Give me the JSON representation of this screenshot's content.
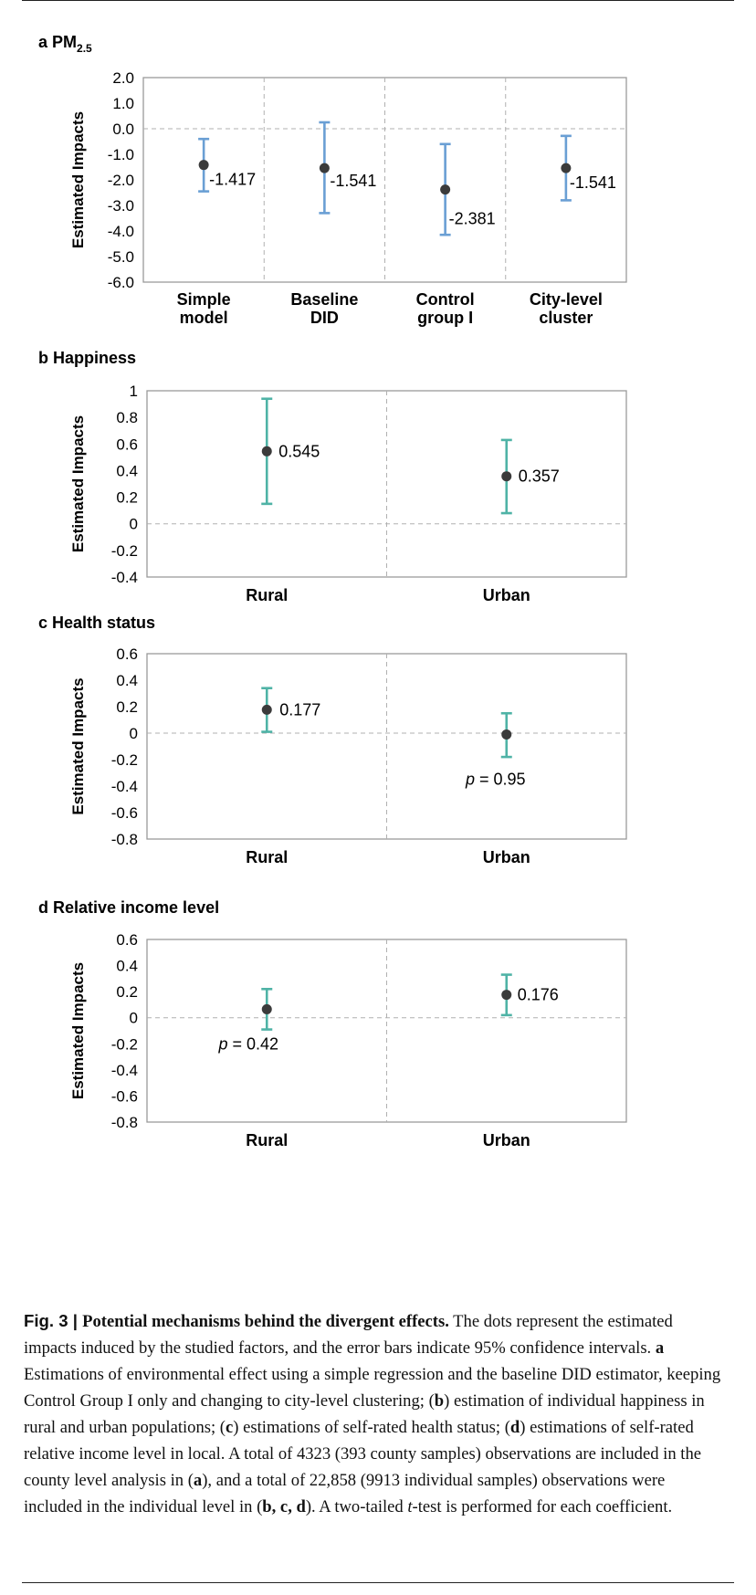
{
  "chart_data": [
    {
      "type": "scatter",
      "panel": "a",
      "title": "PM",
      "title_sub": "2.5",
      "ylabel": "Estimated Impacts",
      "ylim": [
        -6.0,
        2.0
      ],
      "yticks": [
        2.0,
        1.0,
        0.0,
        -1.0,
        -2.0,
        -3.0,
        -4.0,
        -5.0,
        -6.0
      ],
      "ytick_labels": [
        "2.0",
        "1.0",
        "0.0",
        "-1.0",
        "-2.0",
        "-3.0",
        "-4.0",
        "-5.0",
        "-6.0"
      ],
      "categories": [
        [
          "Simple",
          "model"
        ],
        [
          "Baseline",
          "DID"
        ],
        [
          "Control",
          "group I"
        ],
        [
          "City-level",
          "cluster"
        ]
      ],
      "values": [
        -1.417,
        -1.541,
        -2.381,
        -1.541
      ],
      "ci_low": [
        -2.45,
        -3.3,
        -4.15,
        -2.8
      ],
      "ci_high": [
        -0.4,
        0.25,
        -0.6,
        -0.28
      ],
      "labels": [
        "-1.417",
        "-1.541",
        "-2.381",
        "-1.541"
      ],
      "color": "#6a9fd4",
      "grid": "dashed category separators, dashed zero line"
    },
    {
      "type": "scatter",
      "panel": "b",
      "title": "Happiness",
      "ylabel": "Estimated Impacts",
      "ylim": [
        -0.4,
        1.0
      ],
      "yticks": [
        1.0,
        0.8,
        0.6,
        0.4,
        0.2,
        0.0,
        -0.2,
        -0.4
      ],
      "ytick_labels": [
        "1",
        "0.8",
        "0.6",
        "0.4",
        "0.2",
        "0",
        "-0.2",
        "-0.4"
      ],
      "categories": [
        [
          "Rural"
        ],
        [
          "Urban"
        ]
      ],
      "values": [
        0.545,
        0.357
      ],
      "ci_low": [
        0.15,
        0.08
      ],
      "ci_high": [
        0.94,
        0.63
      ],
      "labels": [
        "0.545",
        "0.357"
      ],
      "color": "#4fb3a6"
    },
    {
      "type": "scatter",
      "panel": "c",
      "title": "Health status",
      "ylabel": "Estimated Impacts",
      "ylim": [
        -0.8,
        0.6
      ],
      "yticks": [
        0.6,
        0.4,
        0.2,
        0.0,
        -0.2,
        -0.4,
        -0.6,
        -0.8
      ],
      "ytick_labels": [
        "0.6",
        "0.4",
        "0.2",
        "0",
        "-0.2",
        "-0.4",
        "-0.6",
        "-0.8"
      ],
      "categories": [
        [
          "Rural"
        ],
        [
          "Urban"
        ]
      ],
      "values": [
        0.177,
        -0.01
      ],
      "ci_low": [
        0.01,
        -0.18
      ],
      "ci_high": [
        0.34,
        0.15
      ],
      "labels": [
        "0.177",
        ""
      ],
      "p_labels": [
        "",
        "0.95"
      ],
      "color": "#4fb3a6"
    },
    {
      "type": "scatter",
      "panel": "d",
      "title": "Relative income level",
      "ylabel": "Estimated Impacts",
      "ylim": [
        -0.8,
        0.6
      ],
      "yticks": [
        0.6,
        0.4,
        0.2,
        0.0,
        -0.2,
        -0.4,
        -0.6,
        -0.8
      ],
      "ytick_labels": [
        "0.6",
        "0.4",
        "0.2",
        "0",
        "-0.2",
        "-0.4",
        "-0.6",
        "-0.8"
      ],
      "categories": [
        [
          "Rural"
        ],
        [
          "Urban"
        ]
      ],
      "values": [
        0.065,
        0.176
      ],
      "ci_low": [
        -0.09,
        0.02
      ],
      "ci_high": [
        0.22,
        0.33
      ],
      "labels": [
        "",
        "0.176"
      ],
      "p_labels": [
        "0.42",
        ""
      ],
      "color": "#4fb3a6"
    }
  ],
  "p_prefix": "p",
  "p_eq": " = ",
  "caption": {
    "fig_label": "Fig. 3 | ",
    "heading": "Potential mechanisms behind the divergent effects.",
    "t1": " The dots represent the estimated impacts induced by the studied factors, and the error bars indicate 95% confidence intervals. ",
    "a": "a",
    "t2": " Estimations of environmental effect using a simple regression and the baseline DID estimator, keeping Control Group I only and changing to city-level clustering; (",
    "b": "b",
    "t3": ") estimation of individual happiness in rural and urban populations; (",
    "c": "c",
    "t4": ") estimations of self-rated health status; (",
    "d": "d",
    "t5": ") estimations of self-rated relative income level in local. A total of 4323 (393 county samples) observations are included in the county level analysis in (",
    "a2": "a",
    "t6": "), and a total of 22,858 (9913 individual samples) observations were included in the individual level in (",
    "bcd": "b, c, d",
    "t7": "). A two-tailed ",
    "t_ital": "t",
    "t8": "-test is performed for each coefficient."
  }
}
